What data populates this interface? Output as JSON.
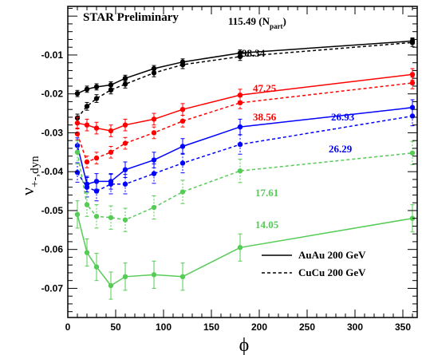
{
  "chart_data": {
    "type": "line",
    "title": "STAR Preliminary",
    "xlabel": "ϕ",
    "ylabel": "ν",
    "ylabel_sub": "+-,dyn",
    "xlim": [
      0,
      365
    ],
    "ylim": [
      -0.0775,
      0.0025
    ],
    "xticks": [
      0,
      50,
      100,
      150,
      200,
      250,
      300,
      350
    ],
    "yticks": [
      -0.01,
      -0.02,
      -0.03,
      -0.04,
      -0.05,
      -0.06,
      -0.07
    ],
    "x": [
      10,
      20,
      30,
      45,
      60,
      90,
      120,
      180,
      360
    ],
    "series": [
      {
        "name": "AuAu 200 GeV",
        "label": "115.49",
        "label_suffix": " (N",
        "label_sub": "part",
        "label_close": ")",
        "color": "#000000",
        "dash": "solid",
        "values": [
          -0.0199,
          -0.0188,
          -0.0182,
          -0.0177,
          -0.016,
          -0.0135,
          -0.0118,
          -0.0095,
          -0.0064
        ],
        "errors": [
          0.0008,
          0.0008,
          0.0008,
          0.0008,
          0.0008,
          0.0008,
          0.0008,
          0.0008,
          0.0008
        ]
      },
      {
        "name": "CuCu 200 GeV",
        "label": "98.34",
        "color": "#000000",
        "dash": "dashed",
        "values": [
          -0.0262,
          -0.0232,
          -0.0212,
          -0.019,
          -0.0175,
          -0.0146,
          -0.0125,
          -0.0104,
          -0.0068
        ],
        "errors": [
          0.001,
          0.001,
          0.001,
          0.001,
          0.001,
          0.001,
          0.001,
          0.001,
          0.001
        ]
      },
      {
        "name": "AuAu 200 GeV",
        "label": "47.25",
        "color": "#ff0000",
        "dash": "solid",
        "values": [
          -0.0275,
          -0.028,
          -0.0288,
          -0.0295,
          -0.028,
          -0.0265,
          -0.024,
          -0.0203,
          -0.015
        ],
        "errors": [
          0.0015,
          0.0015,
          0.0015,
          0.0015,
          0.0015,
          0.0015,
          0.0015,
          0.0015,
          0.0015
        ]
      },
      {
        "name": "CuCu 200 GeV",
        "label": "38.56",
        "color": "#ff0000",
        "dash": "dashed",
        "values": [
          -0.0303,
          -0.0375,
          -0.0365,
          -0.035,
          -0.0327,
          -0.03,
          -0.027,
          -0.0223,
          -0.0172
        ],
        "errors": [
          0.0015,
          0.0015,
          0.0015,
          0.0015,
          0.0015,
          0.0015,
          0.0015,
          0.0015,
          0.0015
        ]
      },
      {
        "name": "AuAu 200 GeV",
        "label": "26.93",
        "color": "#0000ff",
        "dash": "solid",
        "values": [
          -0.0333,
          -0.0432,
          -0.0425,
          -0.0425,
          -0.0395,
          -0.037,
          -0.0335,
          -0.0285,
          -0.0235
        ],
        "errors": [
          0.002,
          0.002,
          0.002,
          0.002,
          0.002,
          0.002,
          0.002,
          0.002,
          0.002
        ]
      },
      {
        "name": "CuCu 200 GeV",
        "label": "26.29",
        "color": "#0000ff",
        "dash": "dashed",
        "values": [
          -0.0402,
          -0.044,
          -0.045,
          -0.0432,
          -0.0432,
          -0.0405,
          -0.0378,
          -0.033,
          -0.0257
        ],
        "errors": [
          0.0025,
          0.0025,
          0.0025,
          0.0025,
          0.0025,
          0.0025,
          0.0025,
          0.0025,
          0.0025
        ]
      },
      {
        "name": "CuCu 200 GeV",
        "label": "17.61",
        "color": "#55cc55",
        "dash": "dashed",
        "values": [
          -0.035,
          -0.0485,
          -0.0515,
          -0.0518,
          -0.0524,
          -0.0492,
          -0.0452,
          -0.0398,
          -0.0352
        ],
        "errors": [
          0.003,
          0.003,
          0.003,
          0.003,
          0.003,
          0.003,
          0.003,
          0.003,
          0.003
        ]
      },
      {
        "name": "AuAu 200 GeV",
        "label": "14.05",
        "color": "#55cc55",
        "dash": "solid",
        "values": [
          -0.051,
          -0.0608,
          -0.0645,
          -0.0693,
          -0.067,
          -0.0665,
          -0.067,
          -0.0595,
          -0.052
        ],
        "errors": [
          0.0035,
          0.0035,
          0.0035,
          0.0035,
          0.0035,
          0.0035,
          0.0035,
          0.0035,
          0.0035
        ]
      }
    ],
    "legend": {
      "position": "bottom-right",
      "entries": [
        {
          "label": "AuAu 200 GeV",
          "dash": "solid"
        },
        {
          "label": "CuCu 200 GeV",
          "dash": "dashed"
        }
      ]
    }
  }
}
